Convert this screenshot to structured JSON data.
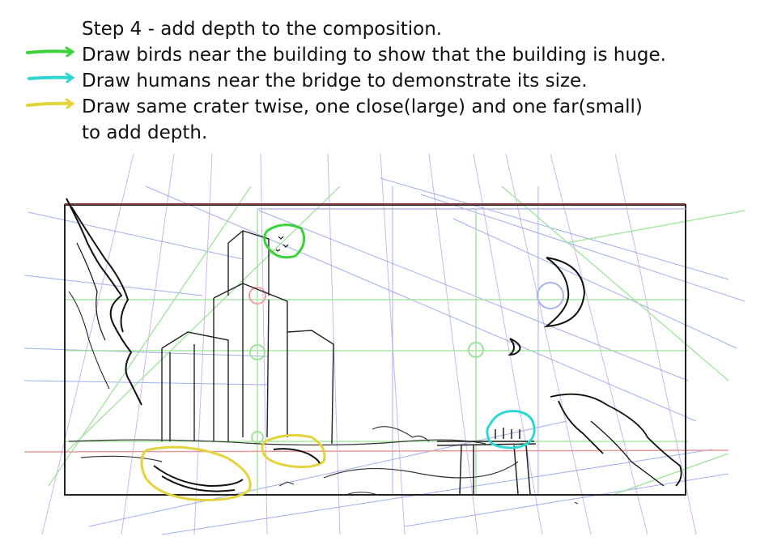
{
  "notes": {
    "title": "Step 4 - add depth to the composition.",
    "items": [
      {
        "text": "Draw birds near the building to show that the building is huge.",
        "arrow_color": "#3cd23c"
      },
      {
        "text": "Draw humans near the bridge to demonstrate its size.",
        "arrow_color": "#2fd7d2"
      },
      {
        "text": "Draw same crater twise, one close(large) and one far(small)",
        "arrow_color": "#e2d43a"
      }
    ],
    "continuation": "to add depth."
  },
  "sketch": {
    "highlight_colors": {
      "birds": "#3cd23c",
      "humans": "#2fd7d2",
      "crater": "#e2d43a"
    },
    "guide_colors": {
      "purple": "#c9a6e8",
      "blue": "#8fa0ea",
      "green": "#9fe39a",
      "red": "#e89a9a"
    }
  }
}
